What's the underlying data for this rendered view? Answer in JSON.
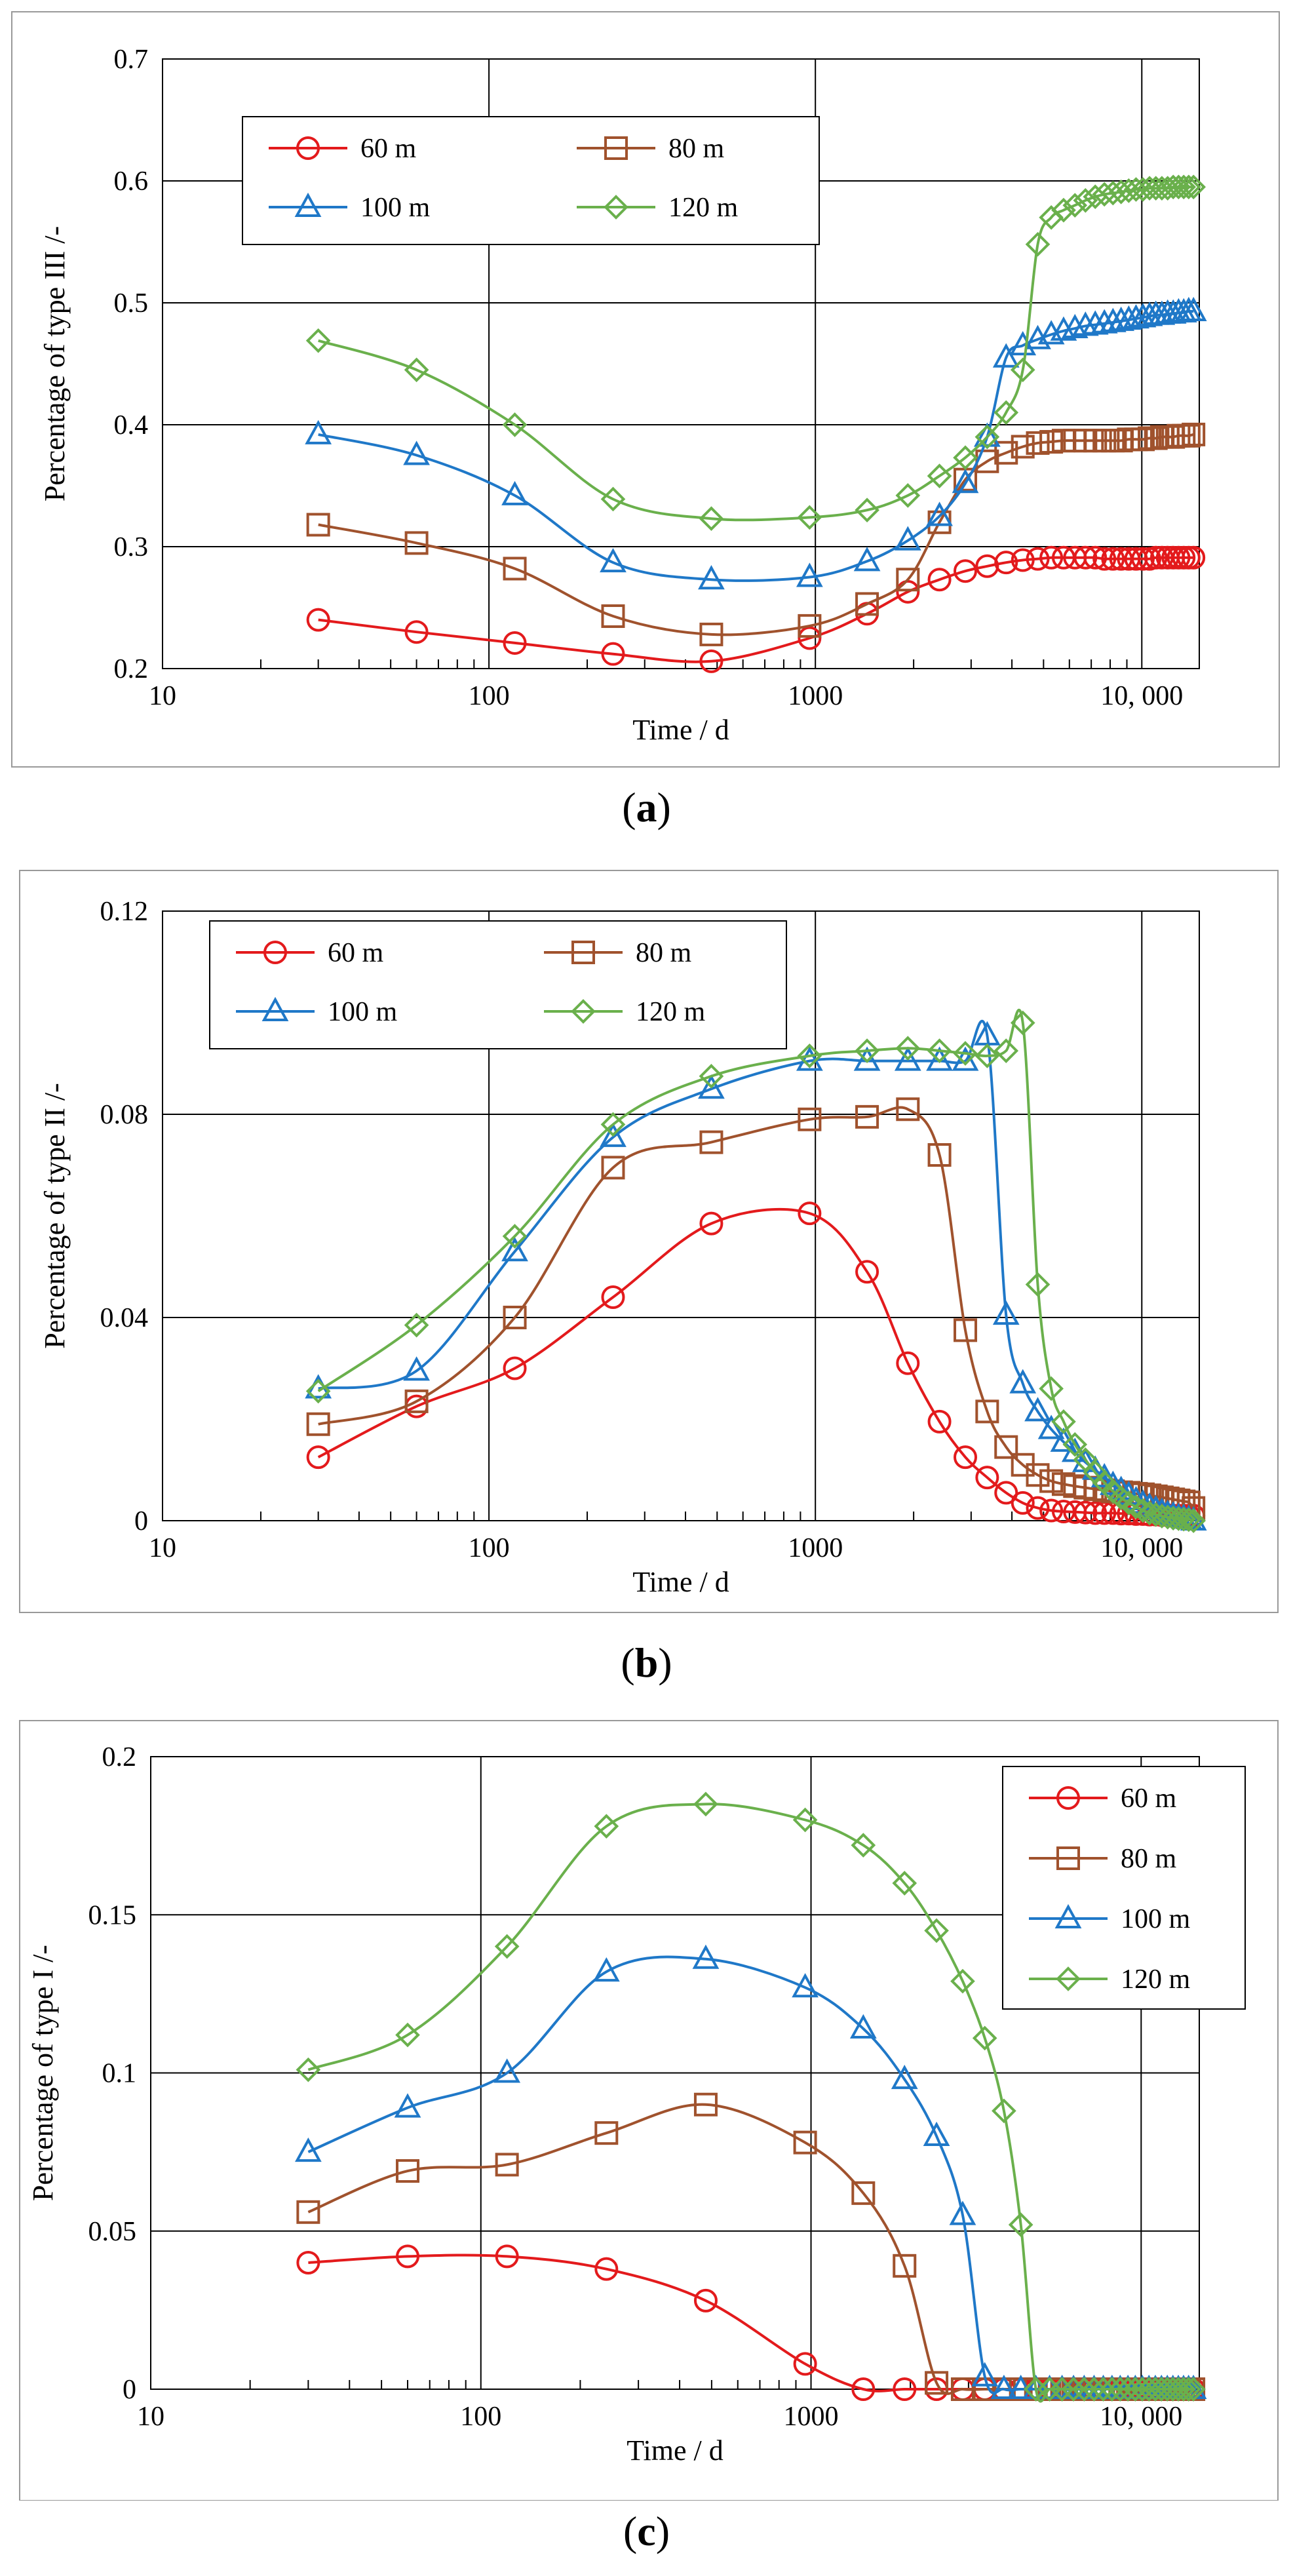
{
  "chart_data": [
    {
      "type": "line",
      "panel": "a",
      "caption_letter": "a",
      "ylabel": "Percentage of type III /-",
      "xlabel": "Time / d",
      "xscale": "log",
      "xlim": [
        10,
        15000
      ],
      "ylim": [
        0.2,
        0.7
      ],
      "yticks": [
        0.2,
        0.3,
        0.4,
        0.5,
        0.6,
        0.7
      ],
      "ytick_labels": [
        "0.2",
        "0.3",
        "0.4",
        "0.5",
        "0.6",
        "0.7"
      ],
      "xticks": [
        10,
        100,
        1000,
        10000
      ],
      "xtick_labels": [
        "10",
        "100",
        "1000",
        "10, 000"
      ],
      "legend_placement": "top-left",
      "legend_columns": 2,
      "series": [
        {
          "name": "60 m",
          "color": "#e31a1c",
          "marker": "circle",
          "x": [
            30,
            60,
            120,
            240,
            480,
            960,
            1440,
            1920,
            2400,
            2880,
            3360,
            3840,
            4320,
            4800,
            5280,
            5760,
            6240,
            6720,
            7200,
            7680,
            8160,
            8640,
            9120,
            9600,
            10080,
            10560,
            11040,
            11520,
            12000,
            12480,
            12960,
            13440,
            13920,
            14400
          ],
          "values": [
            0.24,
            0.23,
            0.221,
            0.212,
            0.206,
            0.225,
            0.245,
            0.263,
            0.273,
            0.28,
            0.284,
            0.287,
            0.289,
            0.29,
            0.291,
            0.291,
            0.291,
            0.291,
            0.291,
            0.29,
            0.29,
            0.29,
            0.29,
            0.29,
            0.29,
            0.29,
            0.291,
            0.291,
            0.291,
            0.291,
            0.291,
            0.291,
            0.291,
            0.291
          ]
        },
        {
          "name": "80 m",
          "color": "#a0522d",
          "marker": "square",
          "x": [
            30,
            60,
            120,
            240,
            480,
            960,
            1440,
            1920,
            2400,
            2880,
            3360,
            3840,
            4320,
            4800,
            5280,
            5760,
            6240,
            6720,
            7200,
            7680,
            8160,
            8640,
            9120,
            9600,
            10080,
            10560,
            11040,
            11520,
            12000,
            12480,
            12960,
            13440,
            13920,
            14400
          ],
          "values": [
            0.318,
            0.303,
            0.282,
            0.243,
            0.228,
            0.235,
            0.253,
            0.273,
            0.32,
            0.355,
            0.37,
            0.377,
            0.382,
            0.385,
            0.386,
            0.387,
            0.387,
            0.387,
            0.387,
            0.387,
            0.387,
            0.387,
            0.388,
            0.388,
            0.388,
            0.389,
            0.389,
            0.39,
            0.39,
            0.39,
            0.391,
            0.391,
            0.391,
            0.392
          ]
        },
        {
          "name": "100 m",
          "color": "#1f78c8",
          "marker": "triangle",
          "x": [
            30,
            60,
            120,
            240,
            480,
            960,
            1440,
            1920,
            2400,
            2880,
            3360,
            3840,
            4320,
            4800,
            5280,
            5760,
            6240,
            6720,
            7200,
            7680,
            8160,
            8640,
            9120,
            9600,
            10080,
            10560,
            11040,
            11520,
            12000,
            12480,
            12960,
            13440,
            13920,
            14400
          ],
          "values": [
            0.392,
            0.375,
            0.342,
            0.287,
            0.273,
            0.275,
            0.288,
            0.305,
            0.325,
            0.352,
            0.39,
            0.455,
            0.465,
            0.47,
            0.474,
            0.477,
            0.479,
            0.481,
            0.482,
            0.483,
            0.484,
            0.485,
            0.486,
            0.487,
            0.488,
            0.489,
            0.49,
            0.49,
            0.491,
            0.491,
            0.492,
            0.492,
            0.493,
            0.493
          ]
        },
        {
          "name": "120 m",
          "color": "#6ab04c",
          "marker": "diamond",
          "x": [
            30,
            60,
            120,
            240,
            480,
            960,
            1440,
            1920,
            2400,
            2880,
            3360,
            3840,
            4320,
            4800,
            5280,
            5760,
            6240,
            6720,
            7200,
            7680,
            8160,
            8640,
            9120,
            9600,
            10080,
            10560,
            11040,
            11520,
            12000,
            12480,
            12960,
            13440,
            13920,
            14400
          ],
          "values": [
            0.469,
            0.445,
            0.4,
            0.339,
            0.323,
            0.324,
            0.33,
            0.342,
            0.358,
            0.373,
            0.39,
            0.41,
            0.445,
            0.548,
            0.57,
            0.576,
            0.58,
            0.584,
            0.587,
            0.589,
            0.59,
            0.591,
            0.592,
            0.593,
            0.593,
            0.594,
            0.594,
            0.594,
            0.594,
            0.595,
            0.595,
            0.595,
            0.595,
            0.595
          ]
        }
      ]
    },
    {
      "type": "line",
      "panel": "b",
      "caption_letter": "b",
      "ylabel": "Percentage of type II /-",
      "xlabel": "Time / d",
      "xscale": "log",
      "xlim": [
        10,
        15000
      ],
      "ylim": [
        0,
        0.12
      ],
      "yticks": [
        0,
        0.04,
        0.08,
        0.12
      ],
      "ytick_labels": [
        "0",
        "0.04",
        "0.08",
        "0.12"
      ],
      "xticks": [
        10,
        100,
        1000,
        10000
      ],
      "xtick_labels": [
        "10",
        "100",
        "1000",
        "10, 000"
      ],
      "legend_placement": "top-left",
      "legend_columns": 2,
      "series": [
        {
          "name": "60 m",
          "color": "#e31a1c",
          "marker": "circle",
          "x": [
            30,
            60,
            120,
            240,
            480,
            960,
            1440,
            1920,
            2400,
            2880,
            3360,
            3840,
            4320,
            4800,
            5280,
            5760,
            6240,
            6720,
            7200,
            7680,
            8160,
            8640,
            9120,
            9600,
            10080,
            10560,
            11040,
            11520,
            12000,
            12480,
            12960,
            13440,
            13920,
            14400
          ],
          "values": [
            0.0125,
            0.0225,
            0.03,
            0.044,
            0.0585,
            0.0605,
            0.049,
            0.031,
            0.0195,
            0.0125,
            0.0085,
            0.0055,
            0.0035,
            0.0025,
            0.002,
            0.0018,
            0.0017,
            0.0016,
            0.0015,
            0.0015,
            0.0015,
            0.0014,
            0.0014,
            0.0013,
            0.0013,
            0.0012,
            0.0012,
            0.0011,
            0.0011,
            0.001,
            0.001,
            0.001,
            0.001,
            0.001
          ]
        },
        {
          "name": "80 m",
          "color": "#a0522d",
          "marker": "square",
          "x": [
            30,
            60,
            120,
            240,
            480,
            960,
            1440,
            1920,
            2400,
            2880,
            3360,
            3840,
            4320,
            4800,
            5280,
            5760,
            6240,
            6720,
            7200,
            7680,
            8160,
            8640,
            9120,
            9600,
            10080,
            10560,
            11040,
            11520,
            12000,
            12480,
            12960,
            13440,
            13920,
            14400
          ],
          "values": [
            0.019,
            0.0235,
            0.04,
            0.0695,
            0.0745,
            0.079,
            0.0795,
            0.081,
            0.072,
            0.0375,
            0.0215,
            0.0145,
            0.011,
            0.009,
            0.0078,
            0.0072,
            0.0068,
            0.0065,
            0.0062,
            0.006,
            0.0058,
            0.0056,
            0.0055,
            0.0053,
            0.0052,
            0.005,
            0.0048,
            0.0046,
            0.0044,
            0.0042,
            0.004,
            0.0038,
            0.0036,
            0.0025
          ]
        },
        {
          "name": "100 m",
          "color": "#1f78c8",
          "marker": "triangle",
          "x": [
            30,
            60,
            120,
            240,
            480,
            960,
            1440,
            1920,
            2400,
            2880,
            3360,
            3840,
            4320,
            4800,
            5280,
            5760,
            6240,
            6720,
            7200,
            7680,
            8160,
            8640,
            9120,
            9600,
            10080,
            10560,
            11040,
            11520,
            12000,
            12480,
            12960,
            13440,
            13920,
            14400
          ],
          "values": [
            0.026,
            0.0295,
            0.053,
            0.0755,
            0.085,
            0.0905,
            0.0905,
            0.0905,
            0.0905,
            0.0905,
            0.0955,
            0.0405,
            0.027,
            0.0215,
            0.018,
            0.0155,
            0.0135,
            0.0115,
            0.01,
            0.0085,
            0.007,
            0.006,
            0.005,
            0.004,
            0.0033,
            0.0027,
            0.0022,
            0.0017,
            0.0013,
            0.001,
            0.0007,
            0.0005,
            0.0003,
            0.0
          ]
        },
        {
          "name": "120 m",
          "color": "#6ab04c",
          "marker": "diamond",
          "x": [
            30,
            60,
            120,
            240,
            480,
            960,
            1440,
            1920,
            2400,
            2880,
            3360,
            3840,
            4320,
            4800,
            5280,
            5760,
            6240,
            6720,
            7200,
            7680,
            8160,
            8640,
            9120,
            9600,
            10080,
            10560,
            11040,
            11520,
            12000,
            12480,
            12960,
            13440,
            13920,
            14400
          ],
          "values": [
            0.0255,
            0.0385,
            0.056,
            0.078,
            0.0875,
            0.0915,
            0.0925,
            0.093,
            0.0925,
            0.092,
            0.0915,
            0.0925,
            0.098,
            0.0465,
            0.026,
            0.0195,
            0.015,
            0.012,
            0.0095,
            0.0075,
            0.0058,
            0.0045,
            0.0035,
            0.0027,
            0.002,
            0.0015,
            0.0012,
            0.0009,
            0.0007,
            0.0005,
            0.0004,
            0.0003,
            0.0002,
            0.0
          ]
        }
      ]
    },
    {
      "type": "line",
      "panel": "c",
      "caption_letter": "c",
      "ylabel": "Percentage of type I /-",
      "xlabel": "Time / d",
      "xscale": "log",
      "xlim": [
        10,
        15000
      ],
      "ylim": [
        0,
        0.2
      ],
      "yticks": [
        0,
        0.05,
        0.1,
        0.15,
        0.2
      ],
      "ytick_labels": [
        "0",
        "0.05",
        "0.1",
        "0.15",
        "0.2"
      ],
      "xticks": [
        10,
        100,
        1000,
        10000
      ],
      "xtick_labels": [
        "10",
        "100",
        "1000",
        "10, 000"
      ],
      "legend_placement": "top-right",
      "legend_columns": 1,
      "series": [
        {
          "name": "60 m",
          "color": "#e31a1c",
          "marker": "circle",
          "x": [
            30,
            60,
            120,
            240,
            480,
            960,
            1440,
            1920,
            2400,
            2880,
            3360,
            3840,
            4320,
            4800,
            5280,
            5760,
            6240,
            6720,
            7200,
            7680,
            8160,
            8640,
            9120,
            9600,
            10080,
            10560,
            11040,
            11520,
            12000,
            12480,
            12960,
            13440,
            13920,
            14400
          ],
          "values": [
            0.04,
            0.042,
            0.042,
            0.038,
            0.028,
            0.008,
            0.0,
            0.0,
            0.0,
            0.0,
            0.0,
            0.0,
            0.0,
            0.0,
            0.0,
            0.0,
            0.0,
            0.0,
            0.0,
            0.0,
            0.0,
            0.0,
            0.0,
            0.0,
            0.0,
            0.0,
            0.0,
            0.0,
            0.0,
            0.0,
            0.0,
            0.0,
            0.0,
            0.0
          ]
        },
        {
          "name": "80 m",
          "color": "#a0522d",
          "marker": "square",
          "x": [
            30,
            60,
            120,
            240,
            480,
            960,
            1440,
            1920,
            2400,
            2880,
            3360,
            3840,
            4320,
            4800,
            5280,
            5760,
            6240,
            6720,
            7200,
            7680,
            8160,
            8640,
            9120,
            9600,
            10080,
            10560,
            11040,
            11520,
            12000,
            12480,
            12960,
            13440,
            13920,
            14400
          ],
          "values": [
            0.056,
            0.069,
            0.071,
            0.081,
            0.09,
            0.078,
            0.062,
            0.039,
            0.002,
            0.0,
            0.0,
            0.0,
            0.0,
            0.0,
            0.0,
            0.0,
            0.0,
            0.0,
            0.0,
            0.0,
            0.0,
            0.0,
            0.0,
            0.0,
            0.0,
            0.0,
            0.0,
            0.0,
            0.0,
            0.0,
            0.0,
            0.0,
            0.0,
            0.0
          ]
        },
        {
          "name": "100 m",
          "color": "#1f78c8",
          "marker": "triangle",
          "x": [
            30,
            60,
            120,
            240,
            480,
            960,
            1440,
            1920,
            2400,
            2880,
            3360,
            3840,
            4320,
            4800,
            5280,
            5760,
            6240,
            6720,
            7200,
            7680,
            8160,
            8640,
            9120,
            9600,
            10080,
            10560,
            11040,
            11520,
            12000,
            12480,
            12960,
            13440,
            13920,
            14400
          ],
          "values": [
            0.075,
            0.089,
            0.1,
            0.132,
            0.136,
            0.127,
            0.114,
            0.098,
            0.08,
            0.055,
            0.004,
            0.0,
            0.0,
            0.0,
            0.0,
            0.0,
            0.0,
            0.0,
            0.0,
            0.0,
            0.0,
            0.0,
            0.0,
            0.0,
            0.0,
            0.0,
            0.0,
            0.0,
            0.0,
            0.0,
            0.0,
            0.0,
            0.0,
            0.0
          ]
        },
        {
          "name": "120 m",
          "color": "#6ab04c",
          "marker": "diamond",
          "x": [
            30,
            60,
            120,
            240,
            480,
            960,
            1440,
            1920,
            2400,
            2880,
            3360,
            3840,
            4320,
            4800,
            5280,
            5760,
            6240,
            6720,
            7200,
            7680,
            8160,
            8640,
            9120,
            9600,
            10080,
            10560,
            11040,
            11520,
            12000,
            12480,
            12960,
            13440,
            13920,
            14400
          ],
          "values": [
            0.101,
            0.112,
            0.14,
            0.178,
            0.185,
            0.18,
            0.172,
            0.16,
            0.145,
            0.129,
            0.111,
            0.088,
            0.052,
            0.0,
            0.0,
            0.0,
            0.0,
            0.0,
            0.0,
            0.0,
            0.0,
            0.0,
            0.0,
            0.0,
            0.0,
            0.0,
            0.0,
            0.0,
            0.0,
            0.0,
            0.0,
            0.0,
            0.0,
            0.0
          ]
        }
      ]
    }
  ]
}
